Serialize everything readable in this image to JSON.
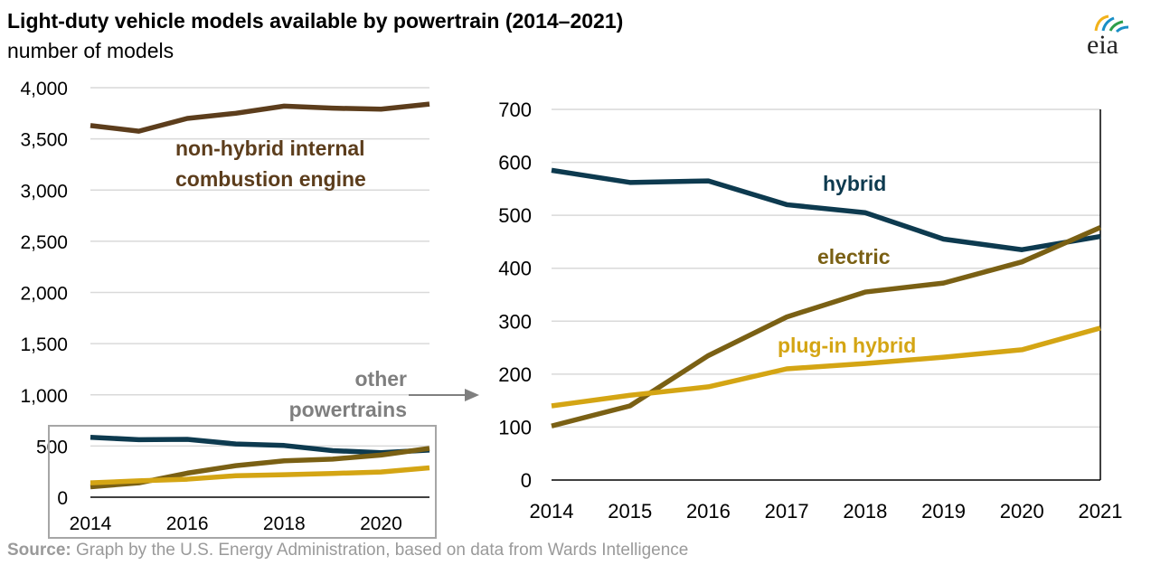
{
  "header": {
    "title": "Light-duty vehicle models available by powertrain (2014–2021)",
    "subtitle": "number of models"
  },
  "logo": {
    "text": "eia",
    "colors": [
      "#f2b21b",
      "#1a8fc6",
      "#2d9e4a"
    ]
  },
  "source": {
    "label": "Source:",
    "text": " Graph by the U.S. Energy Administration, based on data from Wards Intelligence"
  },
  "annotation": {
    "line1": "other",
    "line2": "powertrains"
  },
  "chart_data": [
    {
      "type": "line",
      "title": "",
      "ylabel": "number of models",
      "ylim": [
        0,
        4000
      ],
      "yticks": [
        0,
        500,
        1000,
        1500,
        2000,
        2500,
        3000,
        3500,
        4000
      ],
      "ytick_labels": [
        "0",
        "500",
        "1,000",
        "1,500",
        "2,000",
        "2,500",
        "3,000",
        "3,500",
        "4,000"
      ],
      "xlim": [
        2014,
        2021
      ],
      "xticks": [
        2014,
        2016,
        2018,
        2020
      ],
      "grid": true,
      "x": [
        2014,
        2015,
        2016,
        2017,
        2018,
        2019,
        2020,
        2021
      ],
      "series": [
        {
          "name": "non-hybrid internal combustion engine",
          "label_lines": [
            "non-hybrid internal",
            "combustion engine"
          ],
          "color": "#5c3d1c",
          "values": [
            3630,
            3575,
            3700,
            3750,
            3820,
            3800,
            3790,
            3840
          ]
        },
        {
          "name": "hybrid",
          "color": "#0d3a4f",
          "values": [
            585,
            562,
            565,
            520,
            505,
            455,
            435,
            460
          ]
        },
        {
          "name": "electric",
          "color": "#7a6014",
          "values": [
            102,
            140,
            235,
            308,
            355,
            372,
            412,
            477
          ]
        },
        {
          "name": "plug-in hybrid",
          "color": "#d4a514",
          "values": [
            140,
            160,
            176,
            210,
            220,
            232,
            246,
            287
          ]
        }
      ]
    },
    {
      "type": "line",
      "title": "",
      "ylim": [
        0,
        700
      ],
      "yticks": [
        0,
        100,
        200,
        300,
        400,
        500,
        600,
        700
      ],
      "xlim": [
        2014,
        2021
      ],
      "xticks": [
        2014,
        2015,
        2016,
        2017,
        2018,
        2019,
        2020,
        2021
      ],
      "grid": true,
      "x": [
        2014,
        2015,
        2016,
        2017,
        2018,
        2019,
        2020,
        2021
      ],
      "series": [
        {
          "name": "hybrid",
          "color": "#0d3a4f",
          "values": [
            585,
            562,
            565,
            520,
            505,
            455,
            435,
            460
          ]
        },
        {
          "name": "electric",
          "color": "#7a6014",
          "values": [
            102,
            140,
            235,
            308,
            355,
            372,
            412,
            477
          ]
        },
        {
          "name": "plug-in hybrid",
          "color": "#d4a514",
          "values": [
            140,
            160,
            176,
            210,
            220,
            232,
            246,
            287
          ]
        }
      ]
    }
  ]
}
